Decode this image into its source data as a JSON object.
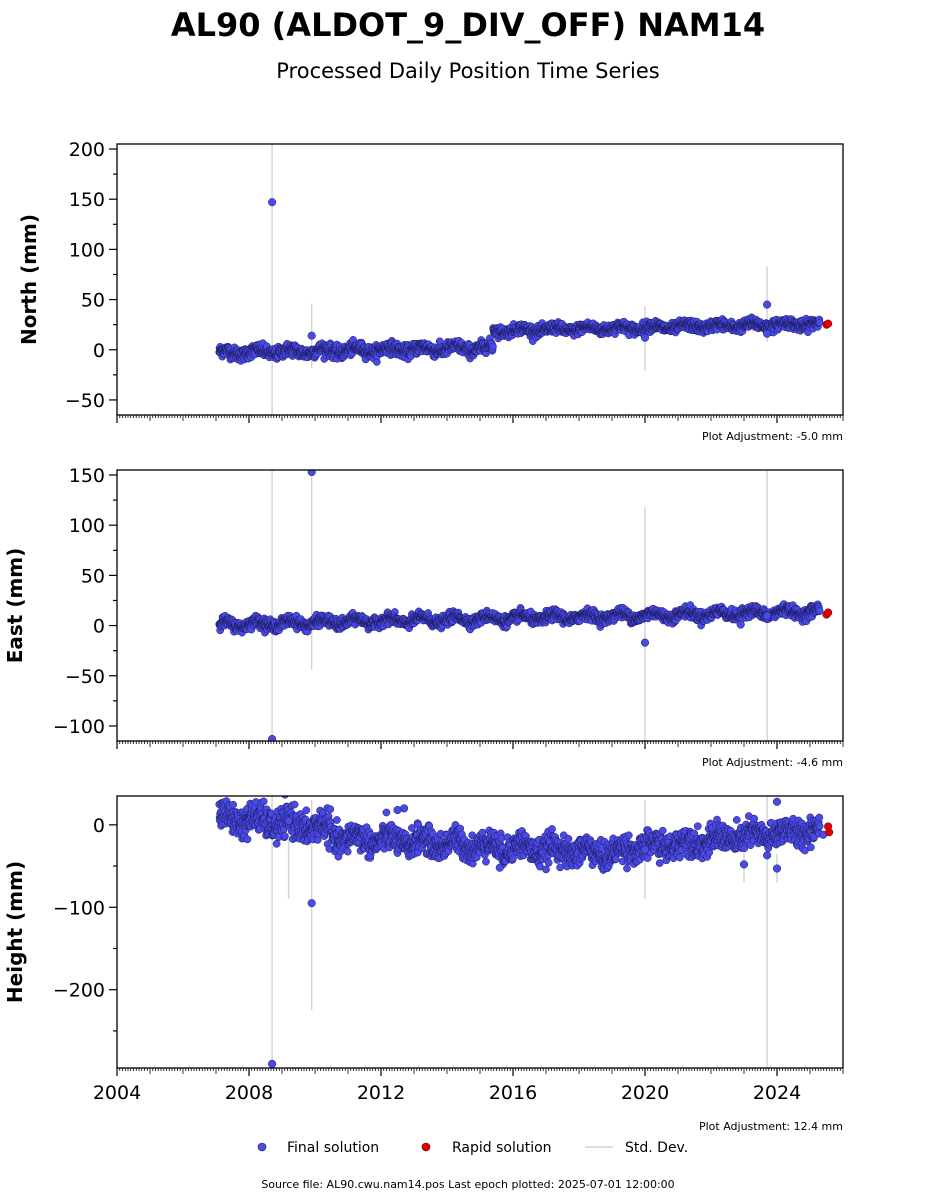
{
  "header": {
    "title": "AL90 (ALDOT_9_DIV_OFF) NAM14",
    "subtitle": "Processed Daily Position Time Series"
  },
  "legend": {
    "final_label": "Final solution",
    "rapid_label": "Rapid solution",
    "std_label": "Std. Dev."
  },
  "footer": {
    "source": "Source file: AL90.cwu.nam14.pos  Last epoch plotted: 2025-07-01 12:00:00"
  },
  "colors": {
    "final": "#4a4ae8",
    "final_edge": "#1a1a5a",
    "rapid": "#e00000",
    "std": "#d3d3d3"
  },
  "chart_data": [
    {
      "type": "scatter",
      "name": "north",
      "ylabel": "North (mm)",
      "xlim": [
        2004.0,
        2026.0
      ],
      "ylim": [
        -65,
        205
      ],
      "yticks": [
        -50,
        0,
        50,
        100,
        150,
        200
      ],
      "xticks": [
        2004,
        2008,
        2012,
        2016,
        2020,
        2024
      ],
      "adjustment": "Plot Adjustment: -5.0 mm",
      "segments": [
        {
          "x0": 2007.1,
          "x1": 2015.4,
          "y0": -3,
          "y1": 2,
          "noise": 3,
          "amp": 2.5
        },
        {
          "x0": 2015.4,
          "x1": 2025.3,
          "y0": 19,
          "y1": 26,
          "noise": 2.5,
          "amp": 2
        }
      ],
      "outliers": [
        {
          "x": 2008.7,
          "y": 147,
          "err_low": -999,
          "err_high": 999
        },
        {
          "x": 2009.9,
          "y": 14,
          "err_low": -18,
          "err_high": 46
        },
        {
          "x": 2020.0,
          "y": 12,
          "err_low": -21,
          "err_high": 44
        },
        {
          "x": 2023.7,
          "y": 45,
          "err_low": 8,
          "err_high": 83
        },
        {
          "x": 2023.7,
          "y": 16,
          "err_low": 16,
          "err_high": 16
        }
      ],
      "rapid": [
        {
          "x": 2025.5,
          "y": 25
        },
        {
          "x": 2025.55,
          "y": 26
        }
      ]
    },
    {
      "type": "scatter",
      "name": "east",
      "ylabel": "East (mm)",
      "xlim": [
        2004.0,
        2026.0
      ],
      "ylim": [
        -115,
        155
      ],
      "yticks": [
        -100,
        -50,
        0,
        50,
        100,
        150
      ],
      "xticks": [
        2004,
        2008,
        2012,
        2016,
        2020,
        2024
      ],
      "adjustment": "Plot Adjustment: -4.6 mm",
      "segments": [
        {
          "x0": 2007.1,
          "x1": 2025.3,
          "y0": 1,
          "y1": 14,
          "noise": 2.5,
          "amp": 3
        }
      ],
      "outliers": [
        {
          "x": 2008.7,
          "y": -113,
          "err_low": -999,
          "err_high": 999
        },
        {
          "x": 2009.9,
          "y": 153,
          "err_low": -44,
          "err_high": 999
        },
        {
          "x": 2020.0,
          "y": -17,
          "err_low": -999,
          "err_high": 118
        },
        {
          "x": 2023.7,
          "y": 10,
          "err_low": -999,
          "err_high": 999
        },
        {
          "x": 2022.9,
          "y": 1,
          "err_low": 1,
          "err_high": 1
        }
      ],
      "rapid": [
        {
          "x": 2025.5,
          "y": 11
        },
        {
          "x": 2025.55,
          "y": 13
        }
      ]
    },
    {
      "type": "scatter",
      "name": "height",
      "ylabel": "Height (mm)",
      "xlim": [
        2004.0,
        2026.0
      ],
      "ylim": [
        -295,
        35
      ],
      "yticks": [
        -200,
        -100,
        0
      ],
      "xticks": [
        2004,
        2008,
        2012,
        2016,
        2020,
        2024
      ],
      "xticklabels": [
        "2004",
        "2008",
        "2012",
        "2016",
        "2020",
        "2024"
      ],
      "adjustment": "Plot Adjustment: 12.4 mm",
      "segments": [
        {
          "x0": 2007.1,
          "x1": 2010.5,
          "y0": 10,
          "y1": -5,
          "noise": 9,
          "amp": 6
        },
        {
          "x0": 2010.5,
          "x1": 2019.3,
          "y0": -15,
          "y1": -35,
          "noise": 8,
          "amp": 6
        },
        {
          "x0": 2019.3,
          "x1": 2025.3,
          "y0": -30,
          "y1": -5,
          "noise": 8,
          "amp": 5
        }
      ],
      "outliers": [
        {
          "x": 2008.7,
          "y": -290,
          "err_low": -999,
          "err_high": 999
        },
        {
          "x": 2009.9,
          "y": -95,
          "err_low": -225,
          "err_high": 30
        },
        {
          "x": 2009.2,
          "y": 5,
          "err_low": -90,
          "err_high": 20
        },
        {
          "x": 2020.0,
          "y": -30,
          "err_low": -90,
          "err_high": 30
        },
        {
          "x": 2023.7,
          "y": -37,
          "err_low": -999,
          "err_high": 999
        },
        {
          "x": 2023.0,
          "y": -48,
          "err_low": -70,
          "err_high": -25
        },
        {
          "x": 2024.0,
          "y": -53,
          "err_low": -70,
          "err_high": -35
        },
        {
          "x": 2024.0,
          "y": 28,
          "err_low": 28,
          "err_high": 28
        },
        {
          "x": 2012.7,
          "y": 20,
          "err_low": 20,
          "err_high": 20
        },
        {
          "x": 2012.5,
          "y": 18,
          "err_low": 18,
          "err_high": 18
        },
        {
          "x": 2015.6,
          "y": -52,
          "err_low": -52,
          "err_high": -52
        },
        {
          "x": 2025.4,
          "y": -12,
          "err_low": -12,
          "err_high": -12
        }
      ],
      "rapid": [
        {
          "x": 2025.55,
          "y": -2
        },
        {
          "x": 2025.58,
          "y": -9
        }
      ]
    }
  ]
}
